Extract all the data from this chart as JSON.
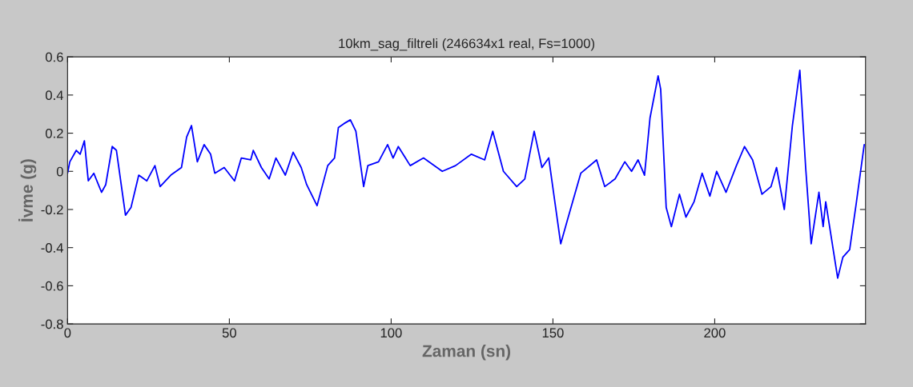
{
  "chart_data": {
    "type": "line",
    "title": "10km_sag_filtreli (246634x1 real, Fs=1000)",
    "xlabel": "Zaman (sn)",
    "ylabel": "İvme (g)",
    "x": [
      0,
      0.7,
      2.7,
      3.9,
      5.2,
      6.4,
      8.1,
      10.5,
      11.8,
      13.8,
      15.1,
      17.9,
      19.6,
      22.0,
      24.5,
      27.0,
      28.6,
      31.9,
      35.2,
      36.8,
      38.3,
      40.1,
      42.2,
      44.2,
      45.5,
      48.4,
      51.6,
      53.7,
      56.6,
      57.4,
      59.9,
      62.3,
      64.4,
      67.3,
      69.7,
      72.2,
      73.9,
      77.1,
      80.4,
      82.5,
      83.7,
      85.4,
      87.4,
      89.1,
      91.5,
      92.8,
      96.1,
      98.9,
      100.6,
      102.2,
      105.9,
      110.0,
      115.8,
      119.9,
      124.8,
      128.9,
      131.4,
      134.7,
      138.8,
      141.3,
      144.2,
      146.6,
      148.7,
      152.4,
      154.4,
      158.6,
      163.5,
      166.0,
      169.2,
      172.2,
      174.3,
      176.3,
      178.3,
      180.0,
      182.5,
      183.3,
      185.0,
      186.6,
      189.1,
      191.1,
      193.6,
      196.1,
      198.5,
      200.6,
      203.5,
      206.7,
      209.2,
      211.7,
      214.6,
      217.4,
      219.1,
      221.5,
      224.0,
      226.3,
      228.1,
      229.8,
      232.2,
      233.5,
      234.3,
      238.0,
      239.6,
      241.7,
      243.8,
      245.0,
      246.2
    ],
    "series": [
      {
        "color": "#0000ff",
        "values": [
          -0.01,
          0.05,
          0.11,
          0.09,
          0.16,
          -0.05,
          -0.01,
          -0.11,
          -0.07,
          0.13,
          0.11,
          -0.23,
          -0.19,
          -0.02,
          -0.05,
          0.03,
          -0.08,
          -0.02,
          0.02,
          0.18,
          0.24,
          0.05,
          0.14,
          0.09,
          -0.01,
          0.02,
          -0.05,
          0.07,
          0.06,
          0.11,
          0.02,
          -0.04,
          0.07,
          -0.02,
          0.1,
          0.02,
          -0.07,
          -0.18,
          0.03,
          0.07,
          0.23,
          0.25,
          0.27,
          0.21,
          -0.08,
          0.03,
          0.05,
          0.14,
          0.07,
          0.13,
          0.03,
          0.07,
          0.0,
          0.03,
          0.09,
          0.06,
          0.21,
          0.0,
          -0.08,
          -0.04,
          0.21,
          0.02,
          0.07,
          -0.38,
          -0.26,
          -0.01,
          0.06,
          -0.08,
          -0.04,
          0.05,
          0.0,
          0.06,
          -0.02,
          0.28,
          0.5,
          0.43,
          -0.19,
          -0.29,
          -0.12,
          -0.24,
          -0.16,
          -0.01,
          -0.13,
          0.0,
          -0.11,
          0.03,
          0.13,
          0.06,
          -0.12,
          -0.08,
          0.02,
          -0.2,
          0.24,
          0.53,
          0.02,
          -0.38,
          -0.11,
          -0.29,
          -0.16,
          -0.56,
          -0.45,
          -0.41,
          -0.16,
          -0.01,
          0.14
        ]
      }
    ],
    "xlim": [
      0,
      246.6
    ],
    "ylim": [
      -0.8,
      0.6
    ],
    "xticks": [
      0,
      50,
      100,
      150,
      200
    ],
    "yticks": [
      -0.8,
      -0.6,
      -0.4,
      -0.2,
      0,
      0.2,
      0.4,
      0.6
    ],
    "grid": false,
    "marker": "none",
    "line_style": "solid"
  }
}
